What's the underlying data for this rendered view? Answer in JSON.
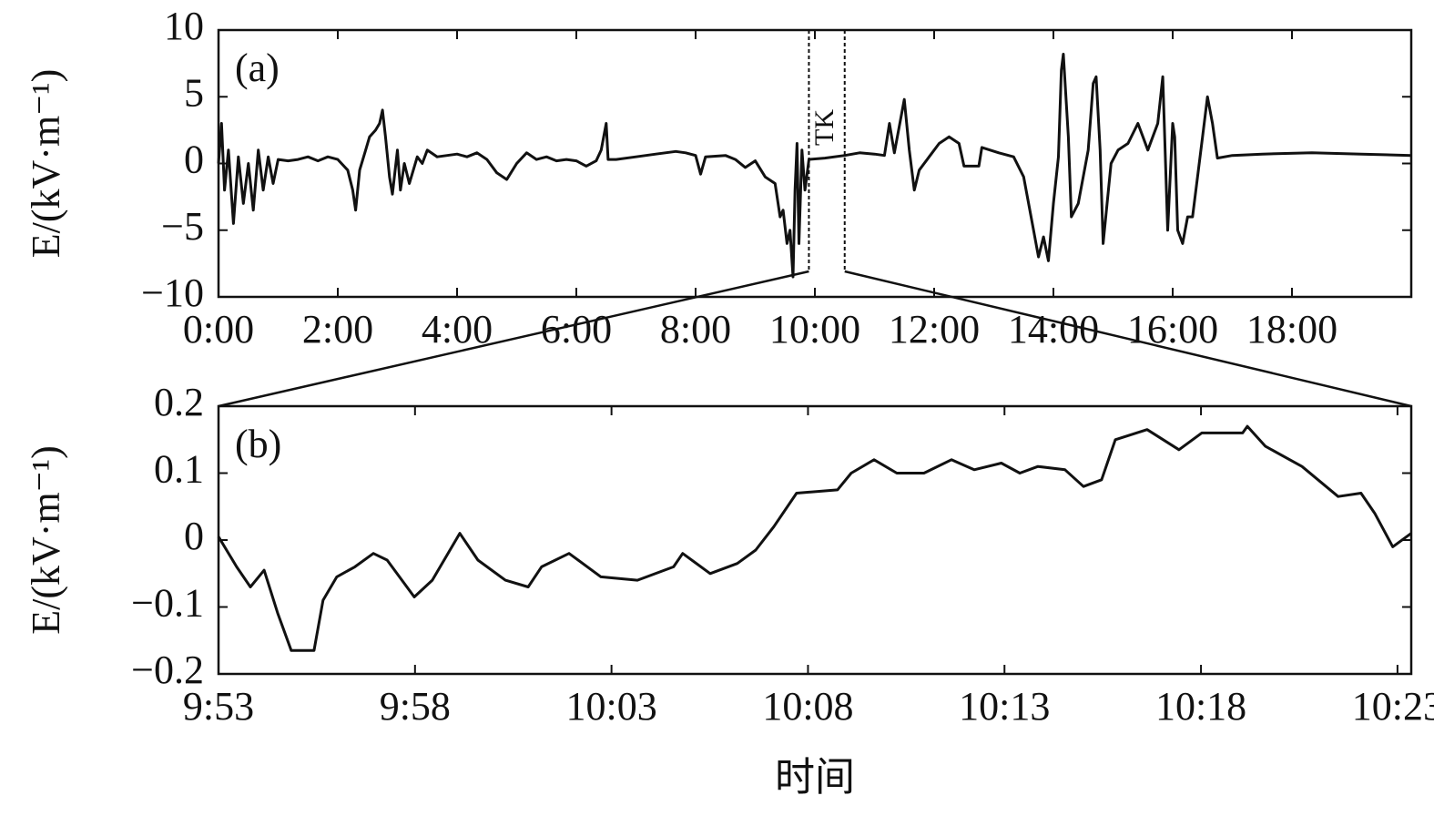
{
  "chart_data": [
    {
      "type": "line",
      "panel_label": "(a)",
      "y_label": "E/(kV·m⁻¹)",
      "color": "#111111",
      "annotation": "TK",
      "span": [
        594,
        630
      ],
      "xlim": [
        0,
        1200
      ],
      "ylim": [
        -10,
        10
      ],
      "xticks": [
        {
          "value": 0,
          "label": "0:00"
        },
        {
          "value": 120,
          "label": "2:00"
        },
        {
          "value": 240,
          "label": "4:00"
        },
        {
          "value": 360,
          "label": "6:00"
        },
        {
          "value": 480,
          "label": "8:00"
        },
        {
          "value": 600,
          "label": "10:00"
        },
        {
          "value": 720,
          "label": "12:00"
        },
        {
          "value": 840,
          "label": "14:00"
        },
        {
          "value": 960,
          "label": "16:00"
        },
        {
          "value": 1080,
          "label": "18:00"
        }
      ],
      "yticks": [
        {
          "value": -10,
          "label": "−10"
        },
        {
          "value": -5,
          "label": "−5"
        },
        0,
        5,
        10
      ],
      "x": [
        0,
        3,
        6,
        10,
        15,
        20,
        25,
        30,
        35,
        40,
        45,
        50,
        55,
        60,
        70,
        80,
        90,
        100,
        110,
        120,
        130,
        135,
        138,
        142,
        148,
        152,
        158,
        162,
        165,
        168,
        172,
        175,
        180,
        183,
        187,
        192,
        200,
        205,
        210,
        220,
        240,
        250,
        260,
        270,
        280,
        290,
        300,
        310,
        320,
        330,
        340,
        350,
        360,
        370,
        380,
        385,
        390,
        392,
        400,
        420,
        440,
        460,
        470,
        480,
        485,
        490,
        510,
        520,
        530,
        540,
        550,
        560,
        565,
        568,
        572,
        575,
        578,
        580,
        582,
        584,
        587,
        590,
        594,
        610,
        630,
        645,
        660,
        670,
        675,
        680,
        690,
        695,
        700,
        705,
        715,
        725,
        735,
        745,
        750,
        765,
        768,
        785,
        800,
        810,
        820,
        825,
        830,
        835,
        840,
        845,
        848,
        850,
        855,
        858,
        865,
        875,
        880,
        883,
        887,
        890,
        898,
        905,
        915,
        925,
        930,
        935,
        945,
        950,
        955,
        960,
        962,
        965,
        970,
        975,
        980,
        985,
        990,
        995,
        1000,
        1005,
        1020,
        1050,
        1100,
        1150,
        1200
      ],
      "values": [
        0,
        3,
        -2,
        1,
        -4.5,
        0.5,
        -3,
        0,
        -3.5,
        1,
        -2,
        0.5,
        -1.5,
        0.3,
        0.2,
        0.3,
        0.5,
        0.2,
        0.5,
        0.3,
        -0.5,
        -2,
        -3.5,
        -0.5,
        1,
        2,
        2.5,
        3,
        4,
        2,
        -1,
        -2.3,
        1,
        -2,
        0,
        -1.5,
        0.5,
        0,
        1,
        0.5,
        0.7,
        0.5,
        0.8,
        0.3,
        -0.7,
        -1.2,
        0,
        0.8,
        0.3,
        0.5,
        0.2,
        0.3,
        0.2,
        -0.2,
        0.2,
        1,
        3,
        0.3,
        0.3,
        0.5,
        0.7,
        0.9,
        0.8,
        0.6,
        -0.8,
        0.5,
        0.6,
        0.3,
        -0.3,
        0.2,
        -1,
        -1.5,
        -4,
        -3.5,
        -6,
        -5,
        -8.5,
        -2,
        1.5,
        -6,
        1,
        -2,
        0.3,
        0.4,
        0.6,
        0.8,
        0.7,
        0.6,
        3,
        0.8,
        4.8,
        1,
        -2,
        -0.5,
        0.5,
        1.5,
        2,
        1.5,
        -0.2,
        -0.2,
        1.2,
        0.8,
        0.5,
        -1,
        -5,
        -7,
        -5.5,
        -7.3,
        -3,
        0.5,
        7,
        8.2,
        2,
        -4,
        -3,
        1,
        6,
        6.5,
        1,
        -6,
        0,
        1,
        1.5,
        3,
        2,
        1,
        3,
        6.5,
        -5,
        3,
        2,
        -5,
        -6,
        -4,
        -4,
        -1,
        2,
        5,
        3,
        0.4,
        0.6,
        0.7,
        0.8,
        0.7,
        0.6
      ]
    },
    {
      "type": "line",
      "panel_label": "(b)",
      "y_label": "E/(kV·m⁻¹)",
      "x_label": "时间",
      "color": "#111111",
      "xlim": [
        593,
        623.35
      ],
      "ylim": [
        -0.2,
        0.2
      ],
      "xticks": [
        {
          "value": 593,
          "label": "9:53"
        },
        {
          "value": 598,
          "label": "9:58"
        },
        {
          "value": 603,
          "label": "10:03"
        },
        {
          "value": 608,
          "label": "10:08"
        },
        {
          "value": 613,
          "label": "10:13"
        },
        {
          "value": 618,
          "label": "10:18"
        },
        {
          "value": 623,
          "label": "10:23"
        }
      ],
      "yticks": [
        {
          "value": -0.2,
          "label": "−0.2"
        },
        {
          "value": -0.1,
          "label": "−0.1"
        },
        0,
        0.1,
        0.2
      ],
      "x": [
        593,
        593.46,
        593.81,
        594.16,
        594.51,
        594.85,
        595.43,
        595.66,
        596.01,
        596.47,
        596.94,
        597.29,
        597.98,
        598.44,
        599.14,
        599.6,
        600.3,
        600.88,
        601.22,
        601.92,
        602.73,
        603.66,
        604.58,
        604.81,
        605.51,
        606.2,
        606.67,
        607.13,
        607.71,
        608.75,
        609.1,
        609.68,
        610.26,
        610.95,
        611.65,
        612.23,
        612.92,
        613.39,
        613.85,
        614.54,
        615.01,
        615.47,
        615.82,
        616.63,
        617.44,
        618.02,
        619.06,
        619.18,
        619.64,
        620.57,
        621.49,
        622.07,
        622.42,
        622.88,
        623.35
      ],
      "values": [
        0.005,
        -0.04,
        -0.07,
        -0.045,
        -0.11,
        -0.165,
        -0.165,
        -0.09,
        -0.055,
        -0.04,
        -0.02,
        -0.03,
        -0.085,
        -0.06,
        0.01,
        -0.03,
        -0.06,
        -0.07,
        -0.04,
        -0.02,
        -0.055,
        -0.06,
        -0.04,
        -0.02,
        -0.05,
        -0.035,
        -0.015,
        0.02,
        0.07,
        0.075,
        0.1,
        0.12,
        0.1,
        0.1,
        0.12,
        0.105,
        0.115,
        0.1,
        0.11,
        0.105,
        0.08,
        0.09,
        0.15,
        0.165,
        0.135,
        0.16,
        0.16,
        0.17,
        0.14,
        0.11,
        0.065,
        0.07,
        0.04,
        -0.01,
        0.01
      ]
    }
  ]
}
